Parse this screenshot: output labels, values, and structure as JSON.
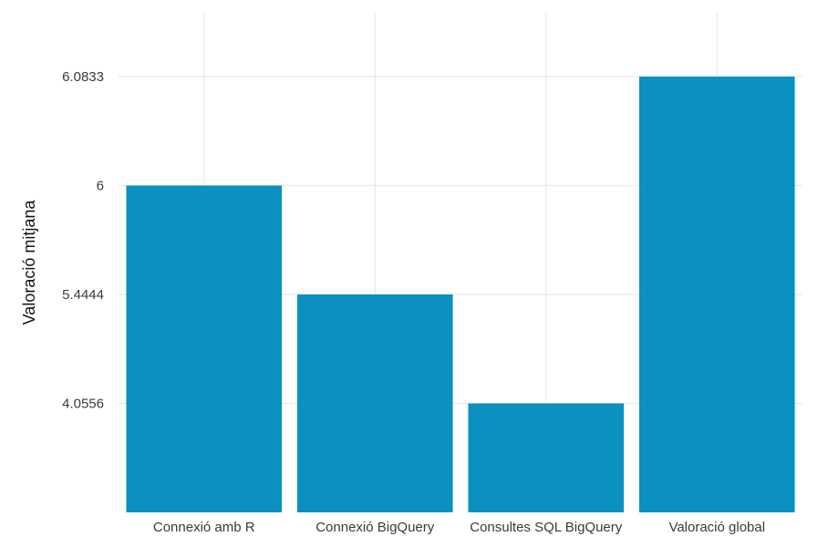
{
  "chart_data": {
    "type": "bar",
    "title": "",
    "xlabel": "",
    "ylabel": "Valoració mitjana",
    "categories": [
      "Connexió amb R",
      "Connexió BigQuery",
      "Consultes SQL BigQuery",
      "Valoració global"
    ],
    "values": [
      6,
      5.4444,
      4.0556,
      6.0833
    ],
    "y_tick_labels": [
      "4.0556",
      "5.4444",
      "6",
      "6.0833"
    ],
    "scale": "ordinal-ranked",
    "grid": true,
    "legend": "none",
    "bar_color": "#0a91c0",
    "grid_color": "#e8e8e8"
  }
}
